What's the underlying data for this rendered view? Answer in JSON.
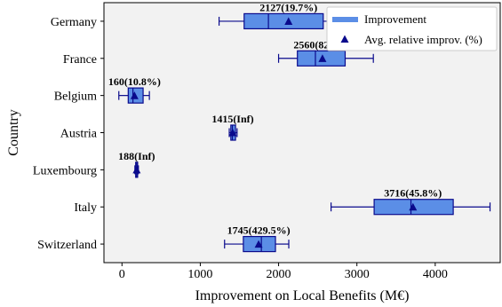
{
  "chart_data": {
    "type": "boxplot",
    "xlabel": "Improvement on Local Benefits (M€)",
    "ylabel": "Country",
    "xlim": [
      -230,
      4830
    ],
    "xticks": [
      0,
      1000,
      2000,
      3000,
      4000
    ],
    "xtick_labels": [
      "0",
      "1000",
      "2000",
      "3000",
      "4000"
    ],
    "grid": false,
    "legend": {
      "position": "top-right",
      "entries": [
        {
          "label": "Improvement",
          "marker": "bar",
          "color": "#5b8ee6"
        },
        {
          "label": "Avg. relative improv. (%)",
          "marker": "triangle",
          "color": "#0a0a8c"
        }
      ]
    },
    "colors": {
      "box_fill": "#5b8ee6",
      "box_edge": "#0a0a8c",
      "background": "#f2f2f2"
    },
    "categories": [
      "Germany",
      "France",
      "Belgium",
      "Austria",
      "Luxembourg",
      "Italy",
      "Switzerland"
    ],
    "boxes": [
      {
        "category": "Germany",
        "whisker_low": 1240,
        "q1": 1560,
        "median": 1870,
        "q3": 2570,
        "whisker_high": 3260,
        "mean": 2127,
        "annotation": "2127(19.7%)"
      },
      {
        "category": "France",
        "whisker_low": 2000,
        "q1": 2240,
        "median": 2470,
        "q3": 2850,
        "whisker_high": 3210,
        "mean": 2560,
        "annotation": "2560(82.6%)"
      },
      {
        "category": "Belgium",
        "whisker_low": -40,
        "q1": 80,
        "median": 140,
        "q3": 270,
        "whisker_high": 350,
        "mean": 160,
        "annotation": "160(10.8%)"
      },
      {
        "category": "Austria",
        "whisker_low": 1370,
        "q1": 1390,
        "median": 1410,
        "q3": 1450,
        "whisker_high": 1470,
        "mean": 1415,
        "annotation": "1415(Inf)"
      },
      {
        "category": "Luxembourg",
        "whisker_low": 165,
        "q1": 175,
        "median": 188,
        "q3": 200,
        "whisker_high": 210,
        "mean": 188,
        "annotation": "188(Inf)"
      },
      {
        "category": "Italy",
        "whisker_low": 2670,
        "q1": 3220,
        "median": 3690,
        "q3": 4230,
        "whisker_high": 4700,
        "mean": 3716,
        "annotation": "3716(45.8%)"
      },
      {
        "category": "Switzerland",
        "whisker_low": 1310,
        "q1": 1550,
        "median": 1780,
        "q3": 1960,
        "whisker_high": 2130,
        "mean": 1745,
        "annotation": "1745(429.5%)"
      }
    ]
  }
}
